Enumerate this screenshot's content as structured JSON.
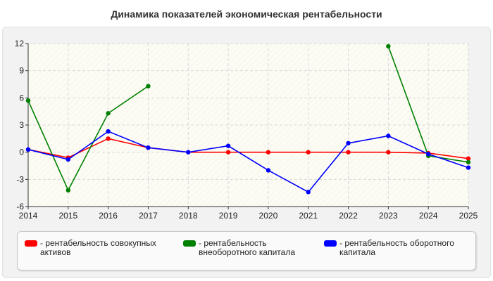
{
  "chart_data": {
    "type": "line",
    "title": "Динамика показателей экономическая рентабельности",
    "x": [
      "2014",
      "2015",
      "2016",
      "2017",
      "2018",
      "2019",
      "2020",
      "2021",
      "2022",
      "2023",
      "2024",
      "2025"
    ],
    "yticks": [
      "12",
      "9",
      "6",
      "3",
      "0",
      "-3",
      "-6"
    ],
    "ylim": [
      -6,
      12
    ],
    "grid": true,
    "legend_position": "bottom",
    "series": [
      {
        "name": "- рентабельность совокупных активов",
        "color": "#ff0000",
        "values": [
          0.3,
          -0.6,
          1.5,
          0.5,
          0.0,
          0.0,
          0.0,
          0.0,
          0.0,
          0.0,
          -0.1,
          -0.7
        ]
      },
      {
        "name": "- рентабельность внеоборотного капитала",
        "color": "#008000",
        "values": [
          5.7,
          -4.2,
          4.3,
          7.3,
          null,
          null,
          null,
          null,
          null,
          11.7,
          -0.4,
          -1.1
        ]
      },
      {
        "name": "- рентабельность оборотного капитала",
        "color": "#0000ff",
        "values": [
          0.3,
          -0.8,
          2.3,
          0.5,
          0.0,
          0.7,
          -2.0,
          -4.4,
          1.0,
          1.8,
          -0.2,
          -1.7
        ]
      }
    ]
  }
}
